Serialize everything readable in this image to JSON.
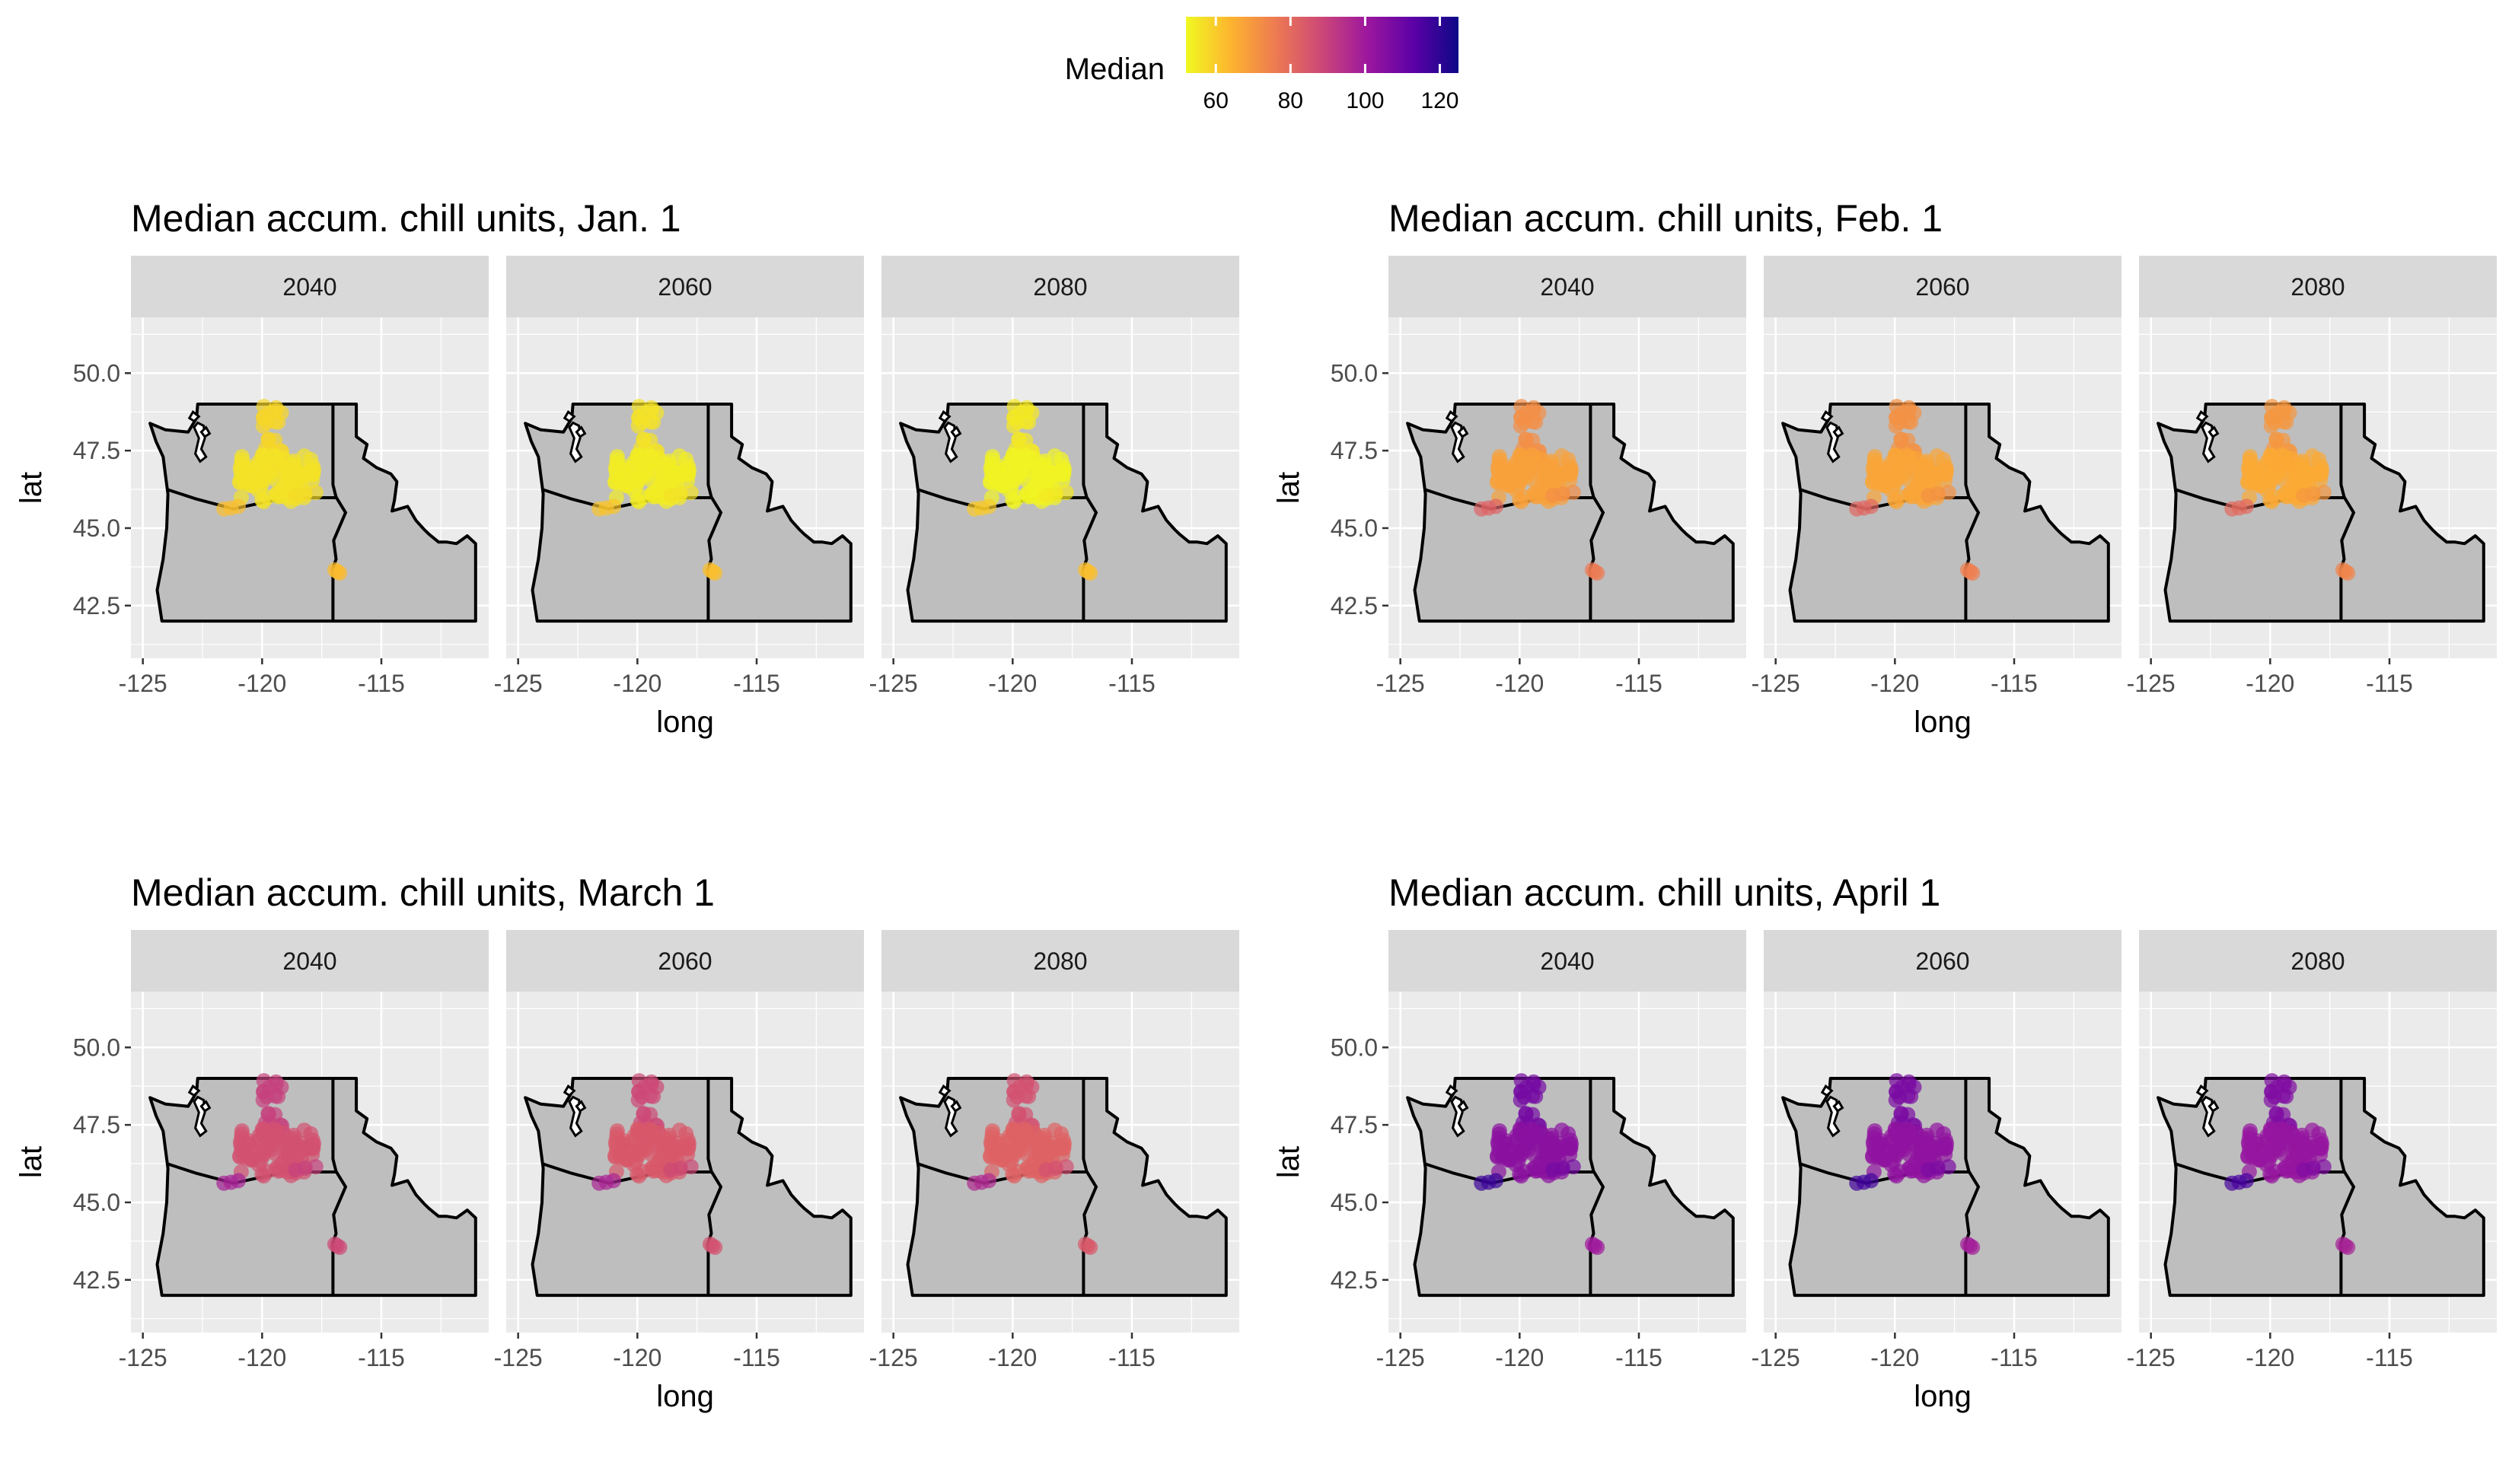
{
  "legend": {
    "title": "Median",
    "ticks": [
      60,
      80,
      100,
      120
    ],
    "range": [
      52,
      125
    ],
    "palette": "plasma",
    "colors": [
      "#F0F921",
      "#FDB32F",
      "#ED7953",
      "#CC4778",
      "#9C179E",
      "#5C01A6",
      "#0D0887"
    ]
  },
  "colors": {
    "panel_bg": "#EBEBEB",
    "strip_bg": "#D9D9D9",
    "grid": "#FFFFFF",
    "land": "#BEBEBE",
    "border": "#000000",
    "text": "#000000",
    "tick_text": "#4D4D4D"
  },
  "chart_data": [
    {
      "type": "scatter",
      "title": "Median accum. chill units, Jan. 1",
      "facets": [
        "2040",
        "2060",
        "2080"
      ],
      "xlabel": "long",
      "ylabel": "lat",
      "xlim": [
        -125.5,
        -110.5
      ],
      "ylim": [
        40.8,
        51.8
      ],
      "xticks": [
        -125,
        -120,
        -115
      ],
      "yticks": [
        42.5,
        45.0,
        47.5,
        50.0
      ],
      "xtick_labels": [
        "-125",
        "-120",
        "-115"
      ],
      "ytick_labels": [
        "42.5",
        "45.0",
        "47.5",
        "50.0"
      ],
      "grid": true,
      "legend": "top-center",
      "series": [
        {
          "facet": "2040",
          "median": [
            58,
            56,
            62,
            57,
            63
          ]
        },
        {
          "facet": "2060",
          "median": [
            56,
            54,
            61,
            56,
            62
          ]
        },
        {
          "facet": "2080",
          "median": [
            55,
            53,
            60,
            55,
            62
          ]
        }
      ]
    },
    {
      "type": "scatter",
      "title": "Median accum. chill units, Feb. 1",
      "facets": [
        "2040",
        "2060",
        "2080"
      ],
      "xlabel": "long",
      "ylabel": "lat",
      "xlim": [
        -125.5,
        -110.5
      ],
      "ylim": [
        40.8,
        51.8
      ],
      "xticks": [
        -125,
        -120,
        -115
      ],
      "yticks": [
        42.5,
        45.0,
        47.5,
        50.0
      ],
      "xtick_labels": [
        "-125",
        "-120",
        "-115"
      ],
      "ytick_labels": [
        "42.5",
        "45.0",
        "47.5",
        "50.0"
      ],
      "grid": true,
      "legend": "top-center",
      "series": [
        {
          "facet": "2040",
          "median": [
            72,
            68,
            82,
            72,
            76
          ]
        },
        {
          "facet": "2060",
          "median": [
            71,
            67,
            81,
            71,
            75
          ]
        },
        {
          "facet": "2080",
          "median": [
            70,
            66,
            80,
            70,
            74
          ]
        }
      ]
    },
    {
      "type": "scatter",
      "title": "Median accum. chill units, March 1",
      "facets": [
        "2040",
        "2060",
        "2080"
      ],
      "xlabel": "long",
      "ylabel": "lat",
      "xlim": [
        -125.5,
        -110.5
      ],
      "ylim": [
        40.8,
        51.8
      ],
      "xticks": [
        -125,
        -120,
        -115
      ],
      "yticks": [
        42.5,
        45.0,
        47.5,
        50.0
      ],
      "xtick_labels": [
        "-125",
        "-120",
        "-115"
      ],
      "ytick_labels": [
        "42.5",
        "45.0",
        "47.5",
        "50.0"
      ],
      "grid": true,
      "legend": "top-center",
      "series": [
        {
          "facet": "2040",
          "median": [
            90,
            86,
            98,
            90,
            88
          ]
        },
        {
          "facet": "2060",
          "median": [
            88,
            84,
            97,
            88,
            86
          ]
        },
        {
          "facet": "2080",
          "median": [
            86,
            82,
            96,
            86,
            84
          ]
        }
      ]
    },
    {
      "type": "scatter",
      "title": "Median accum. chill units, April 1",
      "facets": [
        "2040",
        "2060",
        "2080"
      ],
      "xlabel": "long",
      "ylabel": "lat",
      "xlim": [
        -125.5,
        -110.5
      ],
      "ylim": [
        40.8,
        51.8
      ],
      "xticks": [
        -125,
        -120,
        -115
      ],
      "yticks": [
        42.5,
        45.0,
        47.5,
        50.0
      ],
      "xtick_labels": [
        "-125",
        "-120",
        "-115"
      ],
      "ytick_labels": [
        "42.5",
        "45.0",
        "47.5",
        "50.0"
      ],
      "grid": true,
      "legend": "top-center",
      "series": [
        {
          "facet": "2040",
          "median": [
            108,
            104,
            118,
            108,
            100
          ]
        },
        {
          "facet": "2060",
          "median": [
            107,
            103,
            117,
            107,
            99
          ]
        },
        {
          "facet": "2080",
          "median": [
            106,
            102,
            116,
            106,
            98
          ]
        }
      ]
    }
  ]
}
